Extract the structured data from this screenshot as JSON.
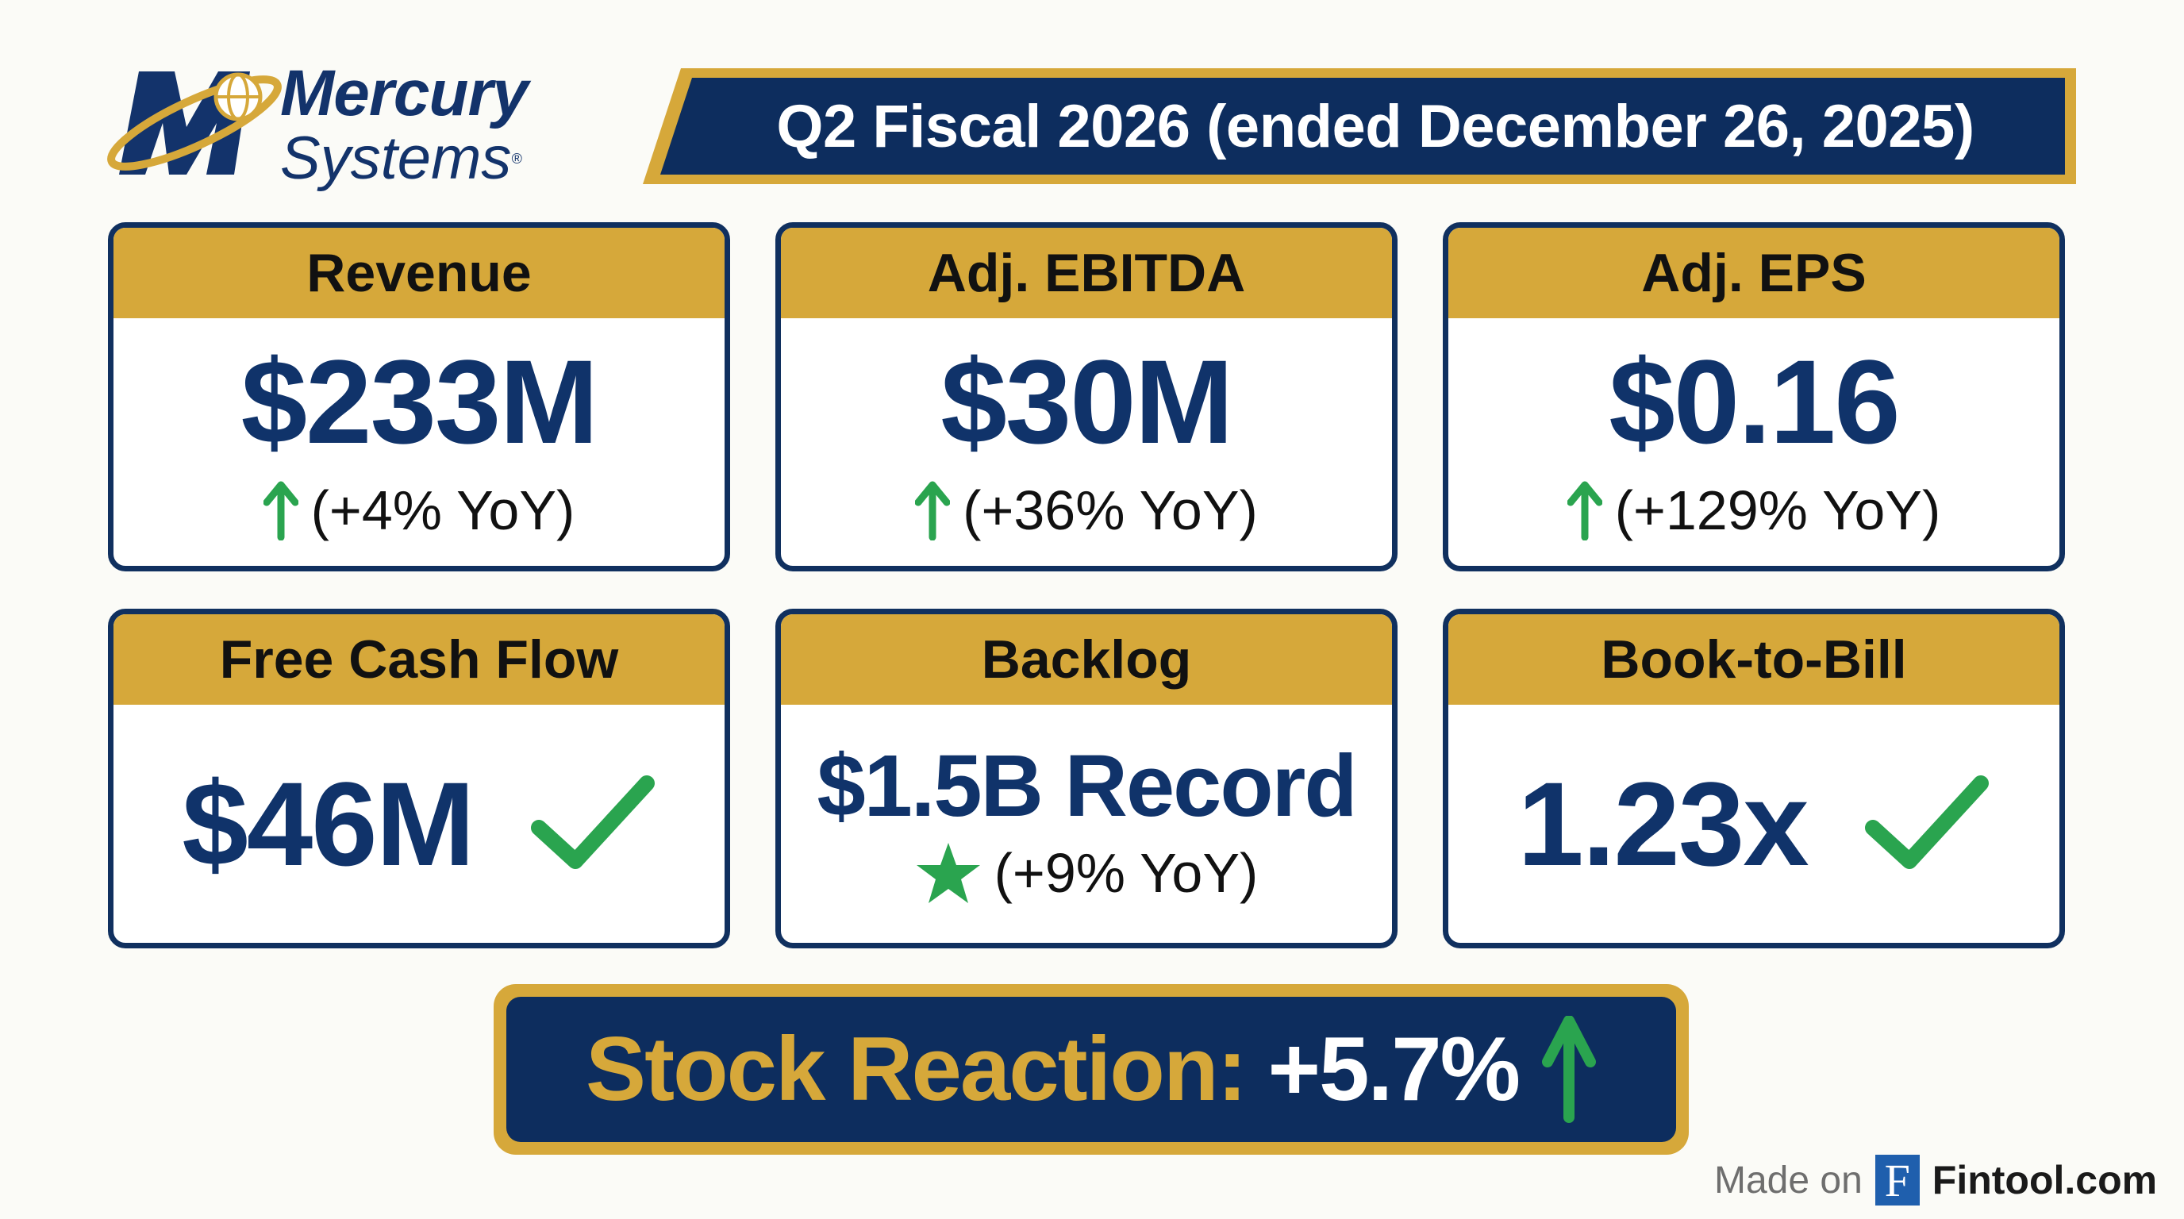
{
  "brand": {
    "line1": "Mercury",
    "line2": "Systems",
    "registered": "®"
  },
  "header": {
    "title": "Q2 Fiscal 2026 (ended December 26, 2025)"
  },
  "metrics": [
    {
      "label": "Revenue",
      "value": "$233M",
      "change": "(+4% YoY)",
      "icon": "arrow-up-icon"
    },
    {
      "label": "Adj. EBITDA",
      "value": "$30M",
      "change": "(+36% YoY)",
      "icon": "arrow-up-icon"
    },
    {
      "label": "Adj. EPS",
      "value": "$0.16",
      "change": "(+129% YoY)",
      "icon": "arrow-up-icon"
    },
    {
      "label": "Free Cash Flow",
      "value": "$46M",
      "icon": "checkmark-icon"
    },
    {
      "label": "Backlog",
      "value": "$1.5B Record",
      "change": "(+9% YoY)",
      "icon": "star-icon"
    },
    {
      "label": "Book-to-Bill",
      "value": "1.23x",
      "icon": "checkmark-icon"
    }
  ],
  "stock": {
    "label": "Stock Reaction:",
    "value": "+5.7%",
    "icon": "arrow-up-icon"
  },
  "footer": {
    "made_on": "Made on",
    "logo_letter": "F",
    "site": "Fintool.com"
  },
  "colors": {
    "navy": "#10336a",
    "gold": "#d6a83a",
    "green": "#2aa44f"
  }
}
